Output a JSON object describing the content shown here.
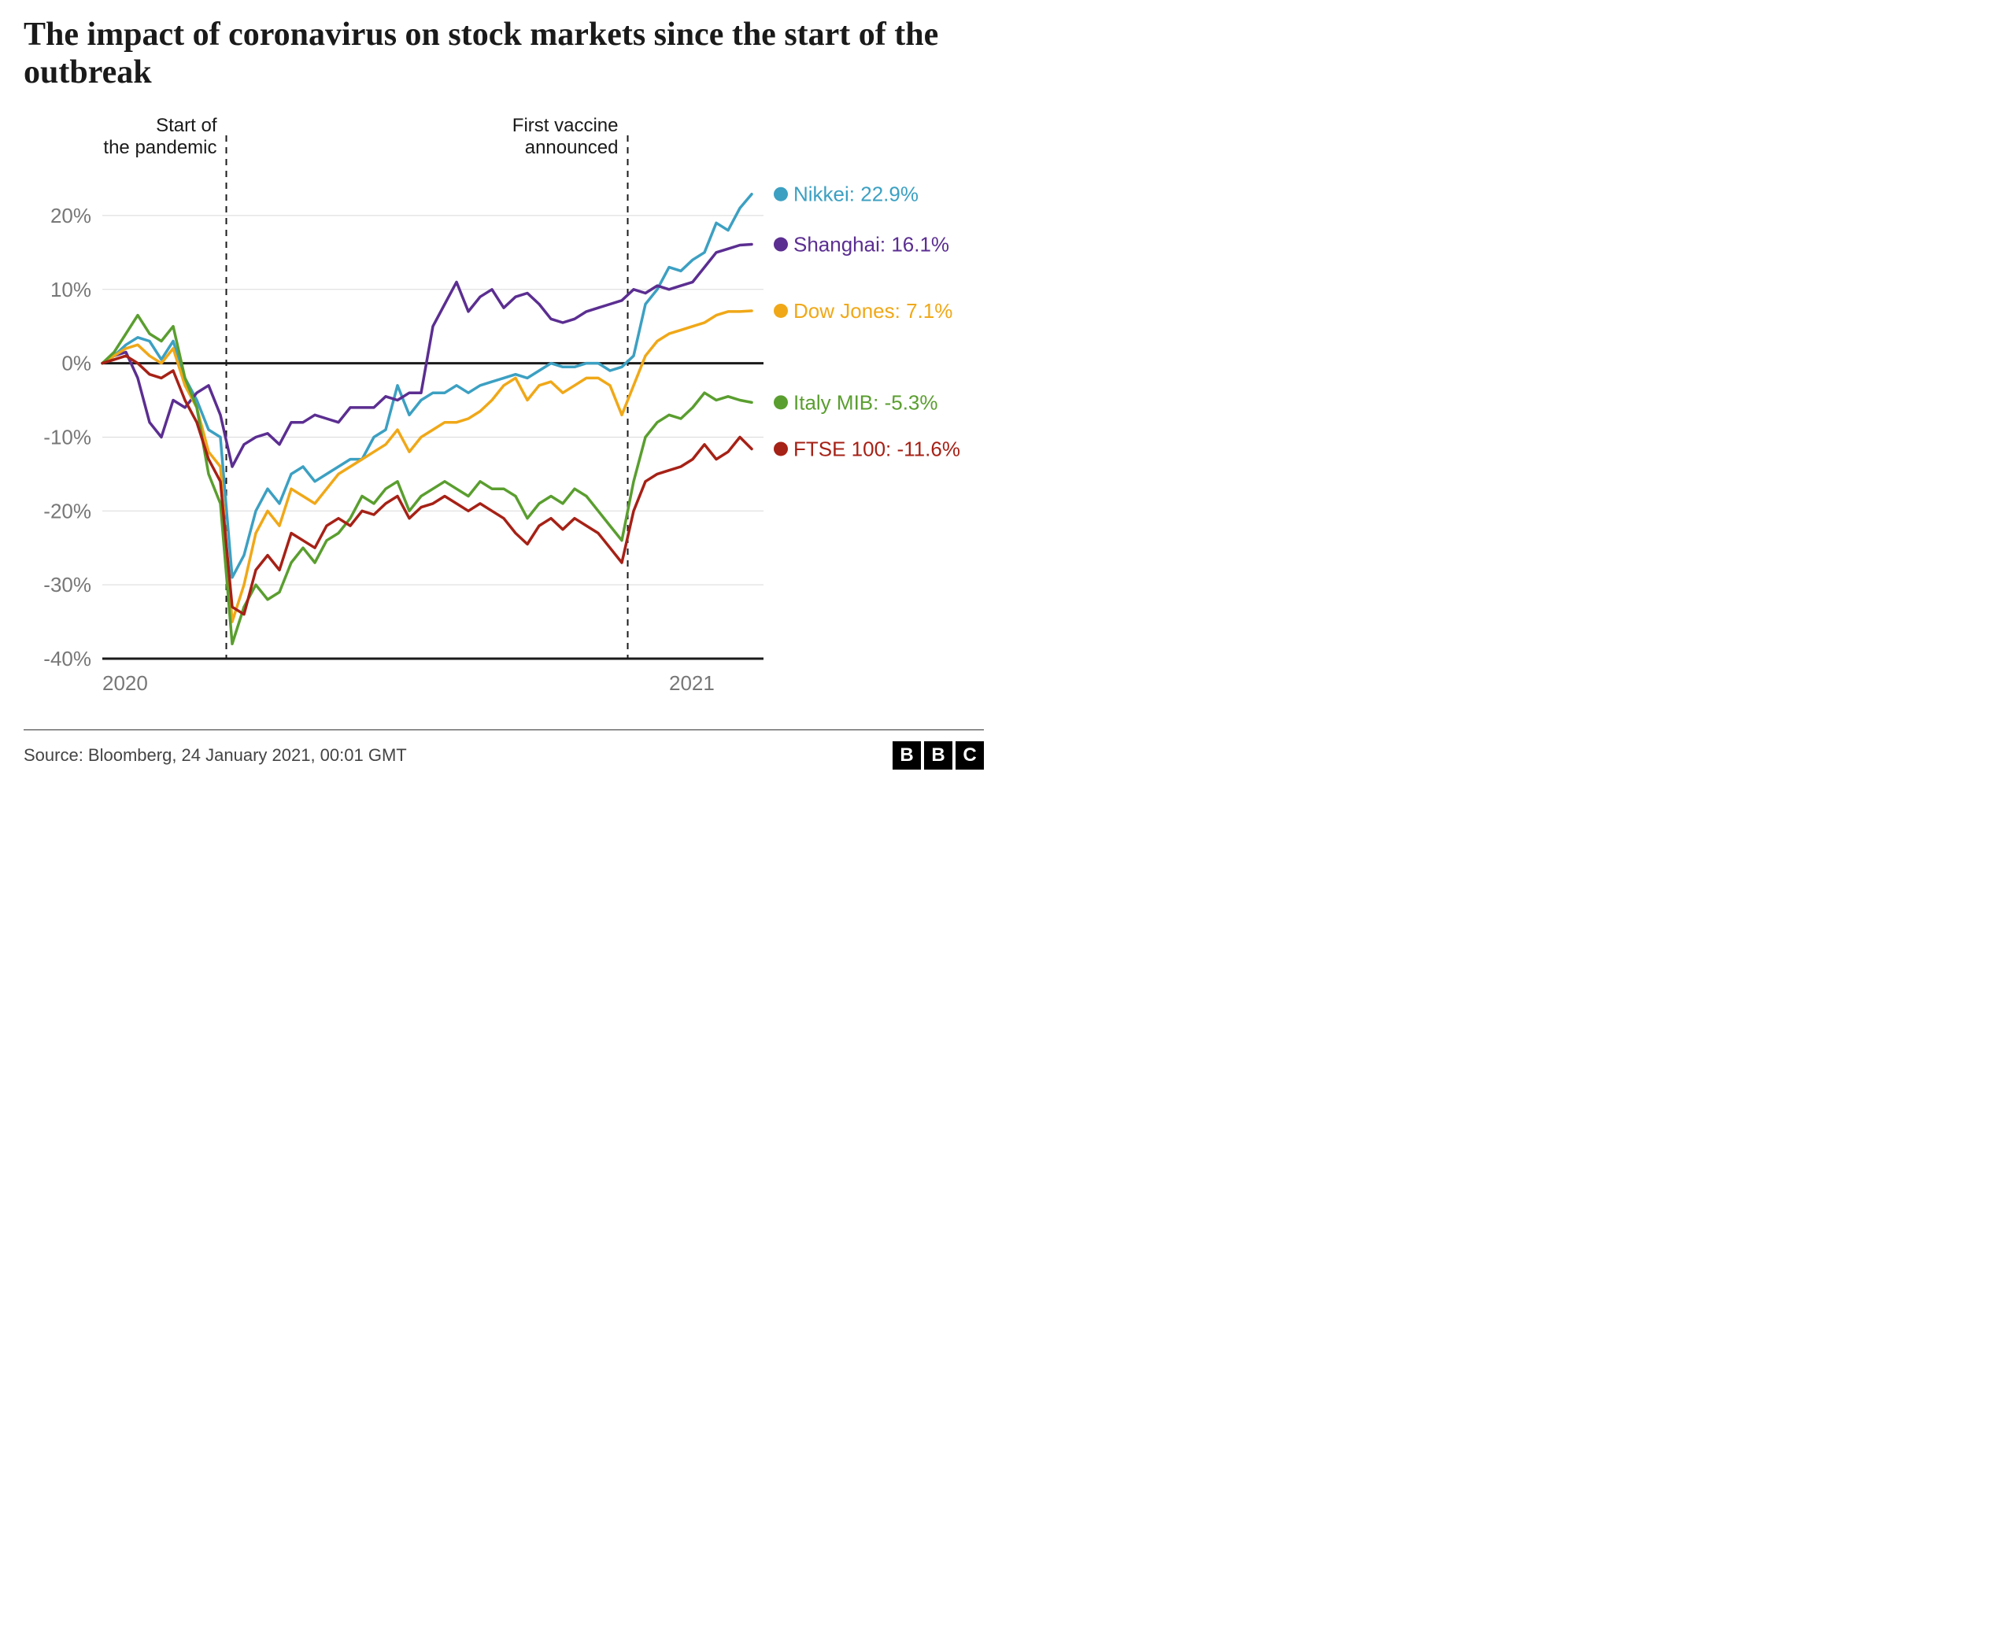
{
  "title": "The impact of coronavirus on stock markets since the start of the outbreak",
  "source": "Source: Bloomberg, 24 January 2021, 00:01 GMT",
  "logo": [
    "B",
    "B",
    "C"
  ],
  "chart": {
    "type": "line",
    "background_color": "#ffffff",
    "grid_color": "#d9d9d9",
    "axis_line_color": "#1a1a1a",
    "axis_text_color": "#777777",
    "ylim": [
      -40,
      25
    ],
    "yticks": [
      -40,
      -30,
      -20,
      -10,
      0,
      10,
      20
    ],
    "ytick_labels": [
      "-40%",
      "-30%",
      "-20%",
      "-10%",
      "0%",
      "10%",
      "20%"
    ],
    "xlim": [
      0,
      56
    ],
    "xticks": [
      0,
      48
    ],
    "xtick_labels": [
      "2020",
      "2021"
    ],
    "line_width": 3.5,
    "annotations": [
      {
        "x": 10.5,
        "label_lines": [
          "Start of",
          "the pandemic"
        ],
        "label_align": "end"
      },
      {
        "x": 44.5,
        "label_lines": [
          "First vaccine",
          "announced"
        ],
        "label_align": "end"
      }
    ],
    "series": [
      {
        "name": "Nikkei",
        "label": "Nikkei: 22.9%",
        "color": "#3ca0c2",
        "end_value": 22.9,
        "points": [
          0,
          0,
          1,
          1,
          2,
          2.5,
          3,
          3.5,
          4,
          3,
          5,
          0.5,
          6,
          3,
          7,
          -2,
          8,
          -5,
          9,
          -9,
          10,
          -10,
          11,
          -29,
          12,
          -26,
          13,
          -20,
          14,
          -17,
          15,
          -19,
          16,
          -15,
          17,
          -14,
          18,
          -16,
          19,
          -15,
          20,
          -14,
          21,
          -13,
          22,
          -13,
          23,
          -10,
          24,
          -9,
          25,
          -3,
          26,
          -7,
          27,
          -5,
          28,
          -4,
          29,
          -4,
          30,
          -3,
          31,
          -4,
          32,
          -3,
          33,
          -2.5,
          34,
          -2,
          35,
          -1.5,
          36,
          -2,
          37,
          -1,
          38,
          0,
          39,
          -0.5,
          40,
          -0.5,
          41,
          0,
          42,
          0,
          43,
          -1,
          44,
          -0.5,
          45,
          1,
          46,
          8,
          47,
          10,
          48,
          13,
          49,
          12.5,
          50,
          14,
          51,
          15,
          52,
          19,
          53,
          18,
          54,
          21,
          55,
          22.9
        ]
      },
      {
        "name": "Shanghai",
        "label": "Shanghai: 16.1%",
        "color": "#5b2e91",
        "end_value": 16.1,
        "points": [
          0,
          0,
          1,
          1,
          2,
          1.5,
          3,
          -2,
          4,
          -8,
          5,
          -10,
          6,
          -5,
          7,
          -6,
          8,
          -4,
          9,
          -3,
          10,
          -7,
          11,
          -14,
          12,
          -11,
          13,
          -10,
          14,
          -9.5,
          15,
          -11,
          16,
          -8,
          17,
          -8,
          18,
          -7,
          19,
          -7.5,
          20,
          -8,
          21,
          -6,
          22,
          -6,
          23,
          -6,
          24,
          -4.5,
          25,
          -5,
          26,
          -4,
          27,
          -4,
          28,
          5,
          29,
          8,
          30,
          11,
          31,
          7,
          32,
          9,
          33,
          10,
          34,
          7.5,
          35,
          9,
          36,
          9.5,
          37,
          8,
          38,
          6,
          39,
          5.5,
          40,
          6,
          41,
          7,
          42,
          7.5,
          43,
          8,
          44,
          8.5,
          45,
          10,
          46,
          9.5,
          47,
          10.5,
          48,
          10,
          49,
          10.5,
          50,
          11,
          51,
          13,
          52,
          15,
          53,
          15.5,
          54,
          16,
          55,
          16.1
        ]
      },
      {
        "name": "Dow Jones",
        "label": "Dow Jones: 7.1%",
        "color": "#f0a818",
        "end_value": 7.1,
        "points": [
          0,
          0,
          1,
          1,
          2,
          2,
          3,
          2.5,
          4,
          1,
          5,
          0,
          6,
          2,
          7,
          -3,
          8,
          -6,
          9,
          -12,
          10,
          -14,
          11,
          -35,
          12,
          -30,
          13,
          -23,
          14,
          -20,
          15,
          -22,
          16,
          -17,
          17,
          -18,
          18,
          -19,
          19,
          -17,
          20,
          -15,
          21,
          -14,
          22,
          -13,
          23,
          -12,
          24,
          -11,
          25,
          -9,
          26,
          -12,
          27,
          -10,
          28,
          -9,
          29,
          -8,
          30,
          -8,
          31,
          -7.5,
          32,
          -6.5,
          33,
          -5,
          34,
          -3,
          35,
          -2,
          36,
          -5,
          37,
          -3,
          38,
          -2.5,
          39,
          -4,
          40,
          -3,
          41,
          -2,
          42,
          -2,
          43,
          -3,
          44,
          -7,
          45,
          -3,
          46,
          1,
          47,
          3,
          48,
          4,
          49,
          4.5,
          50,
          5,
          51,
          5.5,
          52,
          6.5,
          53,
          7,
          54,
          7,
          55,
          7.1
        ]
      },
      {
        "name": "Italy MIB",
        "label": "Italy MIB: -5.3%",
        "color": "#5a9e2f",
        "end_value": -5.3,
        "points": [
          0,
          0,
          1,
          1.5,
          2,
          4,
          3,
          6.5,
          4,
          4,
          5,
          3,
          6,
          5,
          7,
          -2,
          8,
          -6,
          9,
          -15,
          10,
          -19,
          11,
          -38,
          12,
          -33,
          13,
          -30,
          14,
          -32,
          15,
          -31,
          16,
          -27,
          17,
          -25,
          18,
          -27,
          19,
          -24,
          20,
          -23,
          21,
          -21,
          22,
          -18,
          23,
          -19,
          24,
          -17,
          25,
          -16,
          26,
          -20,
          27,
          -18,
          28,
          -17,
          29,
          -16,
          30,
          -17,
          31,
          -18,
          32,
          -16,
          33,
          -17,
          34,
          -17,
          35,
          -18,
          36,
          -21,
          37,
          -19,
          38,
          -18,
          39,
          -19,
          40,
          -17,
          41,
          -18,
          42,
          -20,
          43,
          -22,
          44,
          -24,
          45,
          -16,
          46,
          -10,
          47,
          -8,
          48,
          -7,
          49,
          -7.5,
          50,
          -6,
          51,
          -4,
          52,
          -5,
          53,
          -4.5,
          54,
          -5,
          55,
          -5.3
        ]
      },
      {
        "name": "FTSE 100",
        "label": "FTSE 100: -11.6%",
        "color": "#a62116",
        "end_value": -11.6,
        "points": [
          0,
          0,
          1,
          0.5,
          2,
          1,
          3,
          0,
          4,
          -1.5,
          5,
          -2,
          6,
          -1,
          7,
          -5,
          8,
          -8,
          9,
          -13,
          10,
          -16,
          11,
          -33,
          12,
          -34,
          13,
          -28,
          14,
          -26,
          15,
          -28,
          16,
          -23,
          17,
          -24,
          18,
          -25,
          19,
          -22,
          20,
          -21,
          21,
          -22,
          22,
          -20,
          23,
          -20.5,
          24,
          -19,
          25,
          -18,
          26,
          -21,
          27,
          -19.5,
          28,
          -19,
          29,
          -18,
          30,
          -19,
          31,
          -20,
          32,
          -19,
          33,
          -20,
          34,
          -21,
          35,
          -23,
          36,
          -24.5,
          37,
          -22,
          38,
          -21,
          39,
          -22.5,
          40,
          -21,
          41,
          -22,
          42,
          -23,
          43,
          -25,
          44,
          -27,
          45,
          -20,
          46,
          -16,
          47,
          -15,
          48,
          -14.5,
          49,
          -14,
          50,
          -13,
          51,
          -11,
          52,
          -13,
          53,
          -12,
          54,
          -10,
          55,
          -11.6
        ]
      }
    ]
  }
}
